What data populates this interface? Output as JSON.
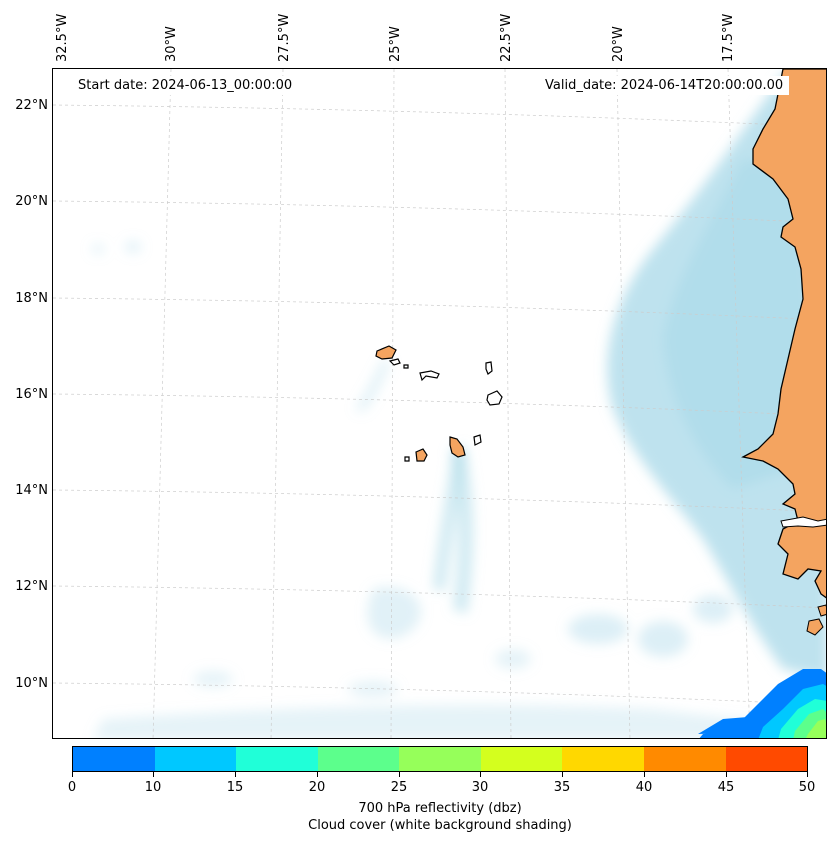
{
  "header": {
    "start_date": "Start date: 2024-06-13_00:00:00",
    "valid_date": "Valid_date: 2024-06-14T20:00:00.00"
  },
  "axes": {
    "lat_labels": [
      "22°N",
      "20°N",
      "18°N",
      "16°N",
      "14°N",
      "12°N",
      "10°N"
    ],
    "lon_labels": [
      "32.5°W",
      "30°W",
      "27.5°W",
      "25°W",
      "22.5°W",
      "20°W",
      "17.5°W"
    ]
  },
  "colorbar": {
    "ticks": [
      "0",
      "10",
      "15",
      "20",
      "25",
      "30",
      "35",
      "40",
      "45",
      "50"
    ],
    "colors": [
      "#0080ff",
      "#00c8ff",
      "#20ffd8",
      "#5cff8c",
      "#96ff5a",
      "#d4ff1e",
      "#ffd800",
      "#ff8a00",
      "#ff4a00"
    ],
    "title": "700 hPa reflectivity (dbz)",
    "subtitle": "Cloud cover (white background shading)"
  },
  "map_colors": {
    "land": "#f4a460",
    "cloud": "#a8d8e8",
    "grid": "#cccccc"
  }
}
